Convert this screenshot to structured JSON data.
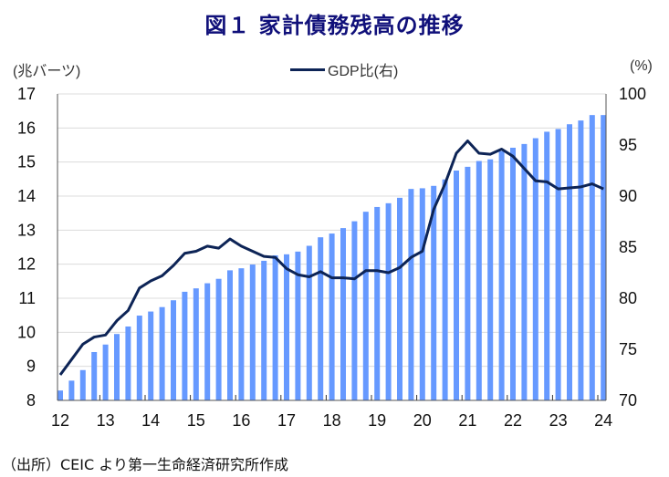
{
  "chart_data": {
    "type": "bar+line",
    "title": "図１ 家計債務残高の推移",
    "ylabel_left": "(兆バーツ)",
    "ylabel_right": "(%)",
    "legend": {
      "label": "GDP比(右)",
      "placement": "top-center"
    },
    "source": "（出所）CEIC より第一生命経済研究所作成",
    "x_tick_labels": [
      "12",
      "13",
      "14",
      "15",
      "16",
      "17",
      "18",
      "19",
      "20",
      "21",
      "22",
      "23",
      "24"
    ],
    "frequency": "quarterly, 2012Q1–2024Q1",
    "ylim_left": [
      8,
      17
    ],
    "yticks_left": [
      8,
      9,
      10,
      11,
      12,
      13,
      14,
      15,
      16,
      17
    ],
    "ylim_right": [
      70,
      100
    ],
    "yticks_right": [
      70,
      75,
      80,
      85,
      90,
      95,
      100
    ],
    "grid": true,
    "colors": {
      "bars": "#6699ff",
      "line": "#0d2456",
      "title": "#10107a"
    },
    "series": [
      {
        "name": "家計債務残高",
        "axis": "left",
        "type": "bar",
        "values": [
          8.29,
          8.58,
          8.89,
          9.42,
          9.64,
          9.95,
          10.17,
          10.49,
          10.61,
          10.74,
          10.94,
          11.19,
          11.29,
          11.44,
          11.57,
          11.82,
          11.88,
          11.99,
          12.1,
          12.26,
          12.29,
          12.37,
          12.54,
          12.79,
          12.9,
          13.06,
          13.26,
          13.54,
          13.68,
          13.79,
          13.95,
          14.21,
          14.23,
          14.3,
          14.49,
          14.75,
          14.86,
          15.03,
          15.08,
          15.32,
          15.42,
          15.53,
          15.7,
          15.89,
          15.97,
          16.11,
          16.22,
          16.38,
          16.38
        ]
      },
      {
        "name": "GDP比(右)",
        "axis": "right",
        "type": "line",
        "values": [
          72.5,
          74.0,
          75.5,
          76.2,
          76.4,
          77.8,
          78.8,
          81.0,
          81.7,
          82.2,
          83.2,
          84.4,
          84.6,
          85.1,
          84.9,
          85.8,
          85.1,
          84.6,
          84.1,
          84.0,
          82.9,
          82.3,
          82.1,
          82.6,
          82.0,
          82.0,
          81.9,
          82.7,
          82.7,
          82.5,
          83.0,
          84.0,
          84.6,
          88.7,
          91.2,
          94.2,
          95.4,
          94.2,
          94.1,
          94.6,
          93.9,
          92.7,
          91.5,
          91.4,
          90.7,
          90.8,
          90.9,
          91.2,
          90.7
        ]
      }
    ]
  }
}
